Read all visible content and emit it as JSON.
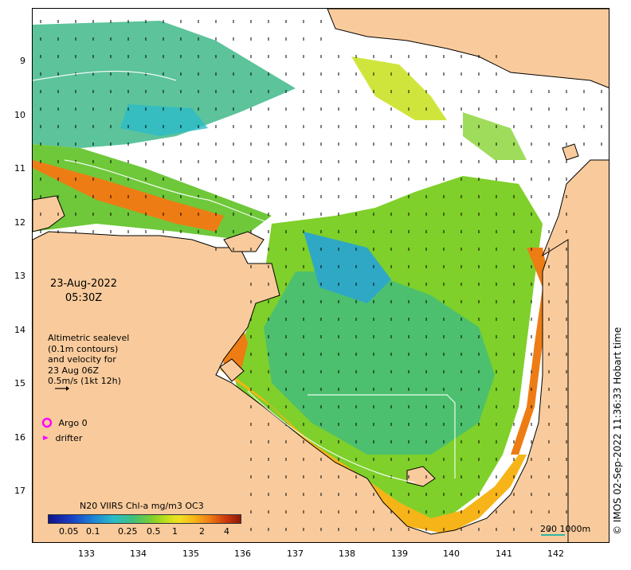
{
  "map": {
    "x_ticks": [
      "133",
      "134",
      "135",
      "136",
      "137",
      "138",
      "139",
      "140",
      "141",
      "142"
    ],
    "y_ticks": [
      "9",
      "10",
      "11",
      "12",
      "13",
      "14",
      "15",
      "16",
      "17"
    ],
    "date_line1": "23-Aug-2022",
    "date_line2": "05:30Z",
    "altimetry_lines": [
      "Altimetric sealevel",
      "(0.1m contours)",
      "and velocity for",
      "23 Aug 06Z",
      "0.5m/s (1kt 12h)"
    ],
    "argo_label": "Argo 0",
    "drifter_label": "drifter",
    "colorbar_title": "N20 VIIRS Chl-a mg/m3 OC3",
    "colorbar_ticks": [
      "0.05",
      "0.1",
      "0.25",
      "0.5",
      "1",
      "2",
      "4"
    ],
    "scale_label": "200  1000m",
    "stamp": "© IMOS 02-Sep-2022 11:36:33 Hobart time",
    "colors": {
      "land": "#f9cb9c",
      "coast": "#000000",
      "argo": "#ff00ff",
      "drifter": "#ff00ff",
      "scale_bar": "#2bb6a6"
    }
  }
}
